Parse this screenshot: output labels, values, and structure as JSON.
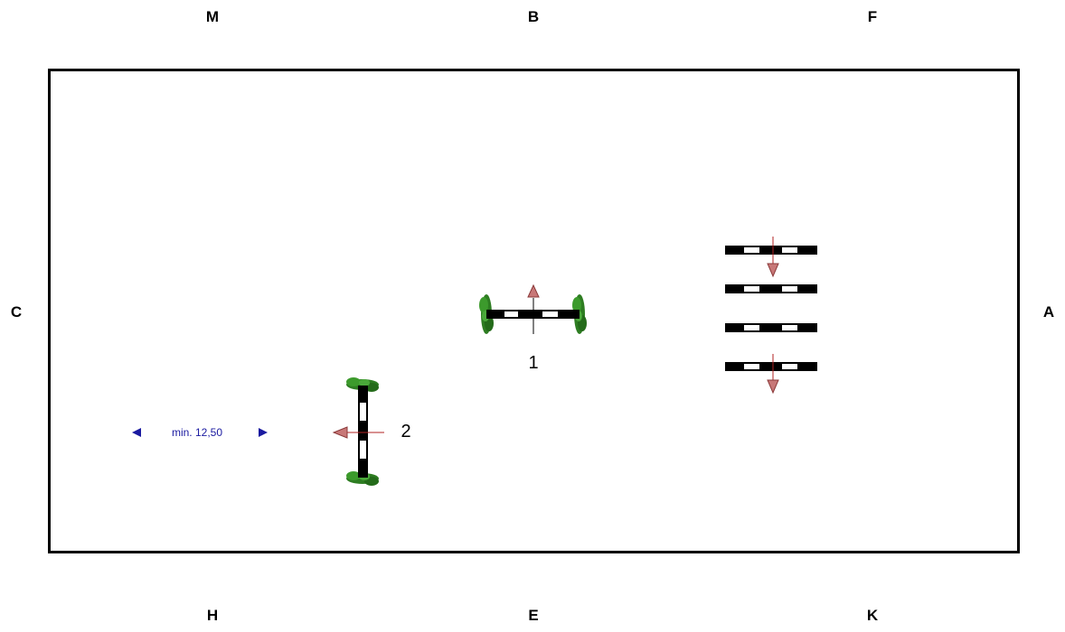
{
  "arena_letters": {
    "top": [
      "M",
      "B",
      "F"
    ],
    "bottom": [
      "H",
      "E",
      "K"
    ],
    "left": "C",
    "right": "A"
  },
  "obstacles": [
    {
      "id": "1",
      "label": "1",
      "type": "vertical",
      "jump_direction": "up"
    },
    {
      "id": "2",
      "label": "2",
      "type": "vertical",
      "jump_direction": "left"
    },
    {
      "id": "cavaletti",
      "label": "",
      "type": "cavaletti",
      "poles": 4
    }
  ],
  "distance_label": "min. 12,50",
  "colors": {
    "pole_dark": "#000000",
    "pole_light": "#ffffff",
    "arrow": "#c87878",
    "arrow_line": "#b22222",
    "shrub": "#2e7d22",
    "distance": "#1a1aa0"
  }
}
